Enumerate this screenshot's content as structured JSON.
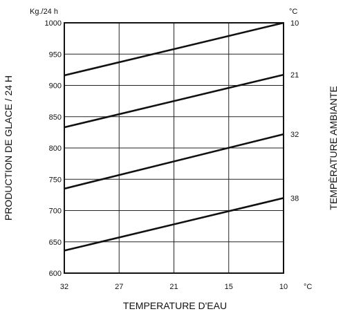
{
  "chart_data": {
    "type": "line",
    "xlabel": "TEMPERATURE D'EAU",
    "ylabel": "PRODUCTION DE GLACE / 24 H",
    "y_unit": "Kg./24 h",
    "x_unit": "°C",
    "right_label": "TEMPÈRATURE AMBIANTE",
    "right_unit": "°C",
    "x_ticks": [
      "32",
      "27",
      "21",
      "15",
      "10"
    ],
    "y_ticks": [
      "1000",
      "950",
      "900",
      "850",
      "800",
      "750",
      "700",
      "650",
      "600"
    ],
    "ylim": [
      600,
      1000
    ],
    "xlim": [
      32,
      10
    ],
    "grid": true,
    "series": [
      {
        "name": "10",
        "x": [
          32,
          10
        ],
        "y": [
          916,
          1000
        ]
      },
      {
        "name": "21",
        "x": [
          32,
          10
        ],
        "y": [
          833,
          917
        ]
      },
      {
        "name": "32",
        "x": [
          32,
          10
        ],
        "y": [
          735,
          822
        ]
      },
      {
        "name": "38",
        "x": [
          32,
          10
        ],
        "y": [
          636,
          720
        ]
      }
    ]
  }
}
